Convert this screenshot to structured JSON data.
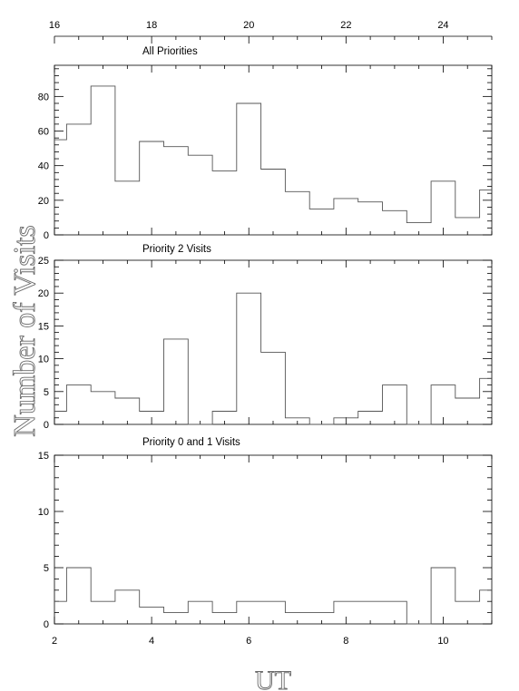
{
  "chart_data": {
    "type": "histogram-step",
    "shared": {
      "ylabel": "Number of Visits",
      "xlabel": "UT",
      "bottom_axis": {
        "range": [
          2,
          11
        ],
        "ticks": [
          2,
          4,
          6,
          8,
          10
        ],
        "tick_labels": [
          "2",
          "4",
          "6",
          "8",
          "10"
        ]
      },
      "top_axis": {
        "range": [
          16,
          25
        ],
        "ticks": [
          16,
          18,
          20,
          22,
          24
        ],
        "tick_labels": [
          "16",
          "18",
          "20",
          "22",
          "24"
        ]
      },
      "bin_edges": [
        2.0,
        2.25,
        2.75,
        3.25,
        3.75,
        4.25,
        4.75,
        5.25,
        5.75,
        6.25,
        6.75,
        7.25,
        7.75,
        8.25,
        8.75,
        9.25,
        9.75,
        10.25,
        10.75,
        11.0
      ]
    },
    "panels": [
      {
        "title": "All Priorities",
        "ylim": [
          0,
          98
        ],
        "yticks": [
          0,
          20,
          40,
          60,
          80
        ],
        "ytick_labels": [
          "0",
          "20",
          "40",
          "60",
          "80"
        ],
        "values": [
          55,
          64,
          86,
          31,
          54,
          51,
          46,
          37,
          76,
          38,
          25,
          15,
          21,
          19,
          14,
          7,
          31,
          10,
          26
        ]
      },
      {
        "title": "Priority 2 Visits",
        "ylim": [
          0,
          25
        ],
        "yticks": [
          0,
          5,
          10,
          15,
          20,
          25
        ],
        "ytick_labels": [
          "0",
          "5",
          "10",
          "15",
          "20",
          "25"
        ],
        "values": [
          2,
          6,
          5,
          4,
          2,
          13,
          0,
          2,
          20,
          11,
          1,
          0,
          1,
          2,
          6,
          0,
          6,
          4,
          7
        ]
      },
      {
        "title": "Priority 0 and 1 Visits",
        "ylim": [
          0,
          15
        ],
        "yticks": [
          0,
          5,
          10,
          15
        ],
        "ytick_labels": [
          "0",
          "5",
          "10",
          "15"
        ],
        "values": [
          2,
          5,
          2,
          3,
          1.5,
          1,
          2,
          1,
          2,
          2,
          1,
          1,
          2,
          2,
          2,
          0,
          5,
          2,
          3
        ]
      }
    ]
  }
}
